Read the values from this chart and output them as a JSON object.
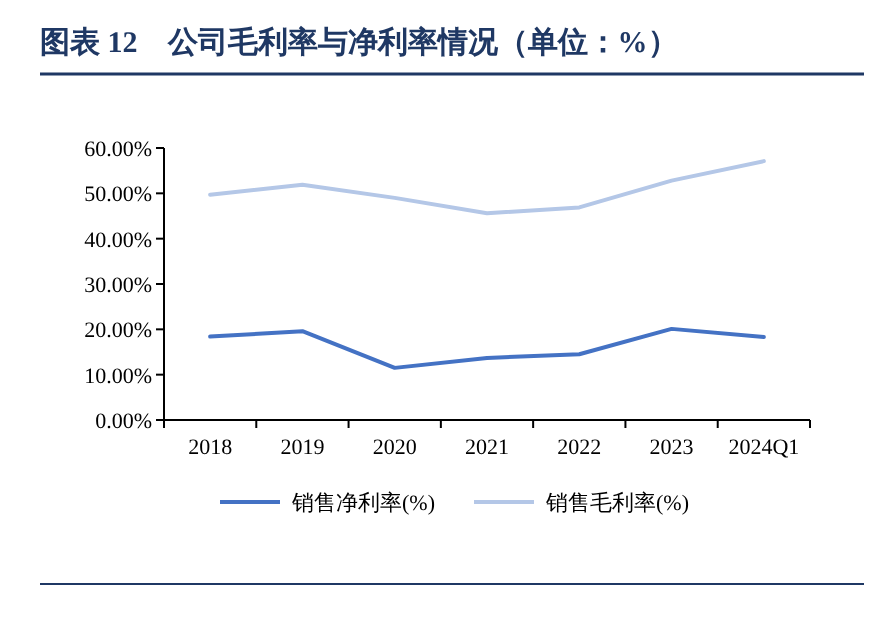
{
  "chart_data": {
    "type": "line",
    "title": "图表 12　公司毛利率与净利率情况（单位：%）",
    "categories": [
      "2018",
      "2019",
      "2020",
      "2021",
      "2022",
      "2023",
      "2024Q1"
    ],
    "series": [
      {
        "name": "销售净利率(%)",
        "color": "#4472c4",
        "values": [
          18.4,
          19.6,
          11.5,
          13.7,
          14.5,
          20.1,
          18.3
        ]
      },
      {
        "name": "销售毛利率(%)",
        "color": "#b4c7e7",
        "values": [
          49.7,
          51.9,
          49.0,
          45.6,
          46.9,
          52.8,
          57.1
        ]
      }
    ],
    "ylim": [
      0,
      60
    ],
    "yticks": [
      {
        "value": 0,
        "label": "0.00%"
      },
      {
        "value": 10,
        "label": "10.00%"
      },
      {
        "value": 20,
        "label": "20.00%"
      },
      {
        "value": 30,
        "label": "30.00%"
      },
      {
        "value": 40,
        "label": "40.00%"
      },
      {
        "value": 50,
        "label": "50.00%"
      },
      {
        "value": 60,
        "label": "60.00%"
      }
    ],
    "grid": false,
    "legend": "bottom",
    "marker": "none",
    "line_style": "solid"
  }
}
